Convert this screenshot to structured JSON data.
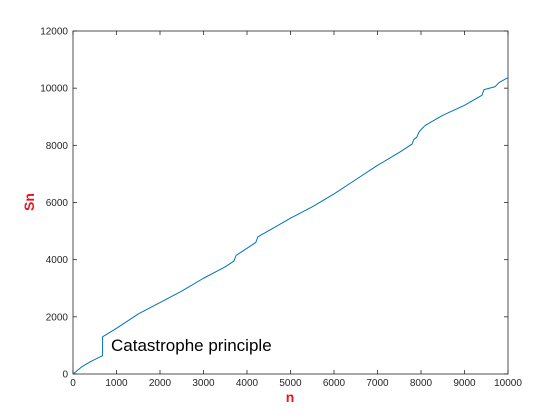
{
  "chart_data": {
    "type": "line",
    "title": "",
    "xlabel": "n",
    "ylabel": "Sn",
    "xlim": [
      0,
      10000
    ],
    "ylim": [
      0,
      12000
    ],
    "xticks": [
      0,
      1000,
      2000,
      3000,
      4000,
      5000,
      6000,
      7000,
      8000,
      9000,
      10000
    ],
    "yticks": [
      0,
      2000,
      4000,
      6000,
      8000,
      10000,
      12000
    ],
    "xtick_labels": [
      "0",
      "1000",
      "2000",
      "3000",
      "4000",
      "5000",
      "6000",
      "7000",
      "8000",
      "9000",
      "10000"
    ],
    "ytick_labels": [
      "0",
      "2000",
      "4000",
      "6000",
      "8000",
      "10000",
      "12000"
    ],
    "grid": false,
    "annotation": "Catastrophe principle",
    "colors": {
      "line": "#0072bd",
      "axis_label": "#e8141b",
      "axis": "#262626"
    },
    "series": [
      {
        "x": [
          0,
          200,
          400,
          680,
          680,
          1000,
          1500,
          2000,
          2500,
          3000,
          3500,
          3700,
          3750,
          4200,
          4250,
          4600,
          5000,
          5500,
          6000,
          6500,
          7000,
          7500,
          7800,
          7830,
          7900,
          7950,
          8000,
          8100,
          8500,
          9000,
          9400,
          9450,
          9700,
          9800,
          10000
        ],
        "y": [
          0,
          250,
          430,
          640,
          1300,
          1600,
          2100,
          2500,
          2900,
          3350,
          3750,
          3950,
          4150,
          4600,
          4800,
          5100,
          5450,
          5850,
          6300,
          6800,
          7300,
          7750,
          8050,
          8200,
          8280,
          8450,
          8550,
          8700,
          9050,
          9400,
          9750,
          9950,
          10050,
          10200,
          10370
        ]
      }
    ]
  }
}
